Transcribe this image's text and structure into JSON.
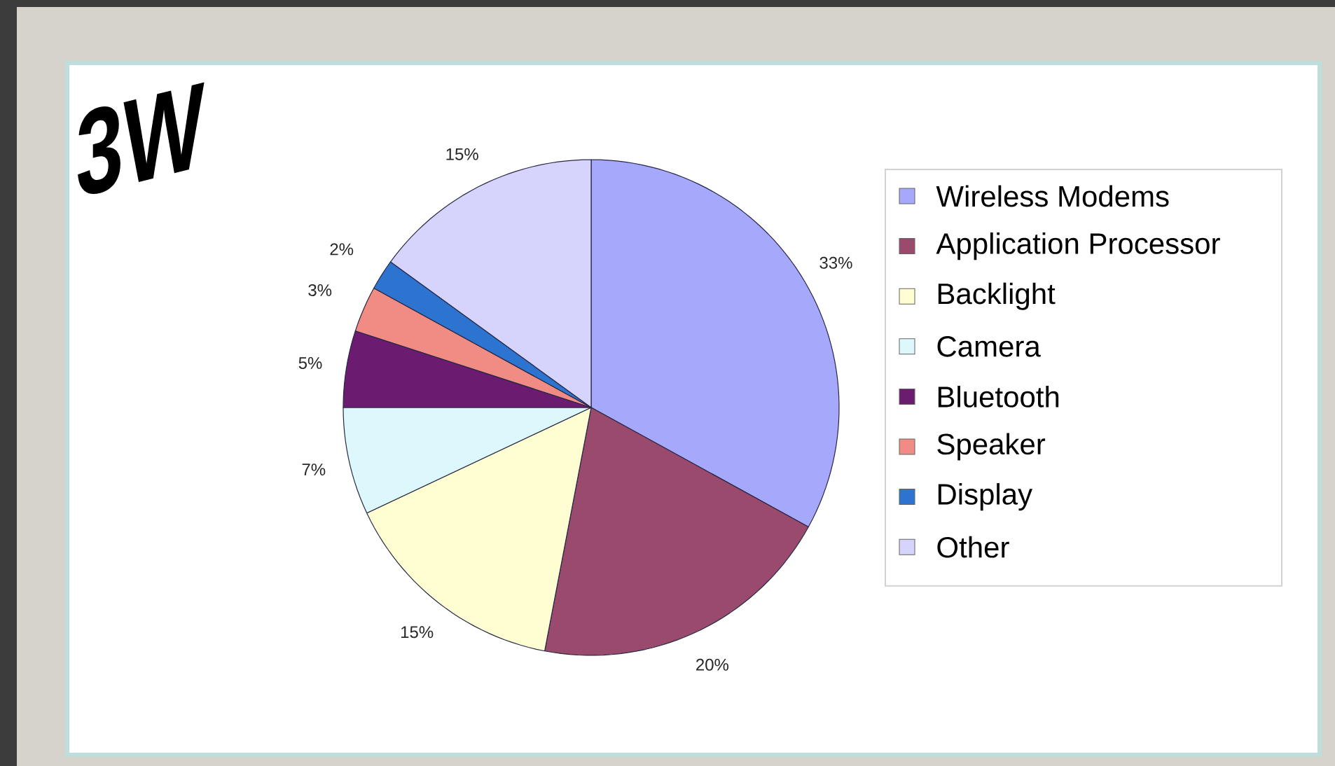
{
  "chart_data": {
    "type": "pie",
    "title": "3W",
    "categories": [
      "Wireless Modems",
      "Application Processor",
      "Backlight",
      "Camera",
      "Bluetooth",
      "Speaker",
      "Display",
      "Other"
    ],
    "values": [
      33,
      20,
      15,
      7,
      5,
      3,
      2,
      15
    ],
    "value_labels": [
      "33%",
      "20%",
      "15%",
      "7%",
      "5%",
      "3%",
      "2%",
      "15%"
    ],
    "colors": [
      "#a6a8fc",
      "#9a4a6c",
      "#fefed2",
      "#ddf8fc",
      "#6c1c70",
      "#f08c84",
      "#2c74d0",
      "#d6d4fc"
    ],
    "legend": "right"
  }
}
